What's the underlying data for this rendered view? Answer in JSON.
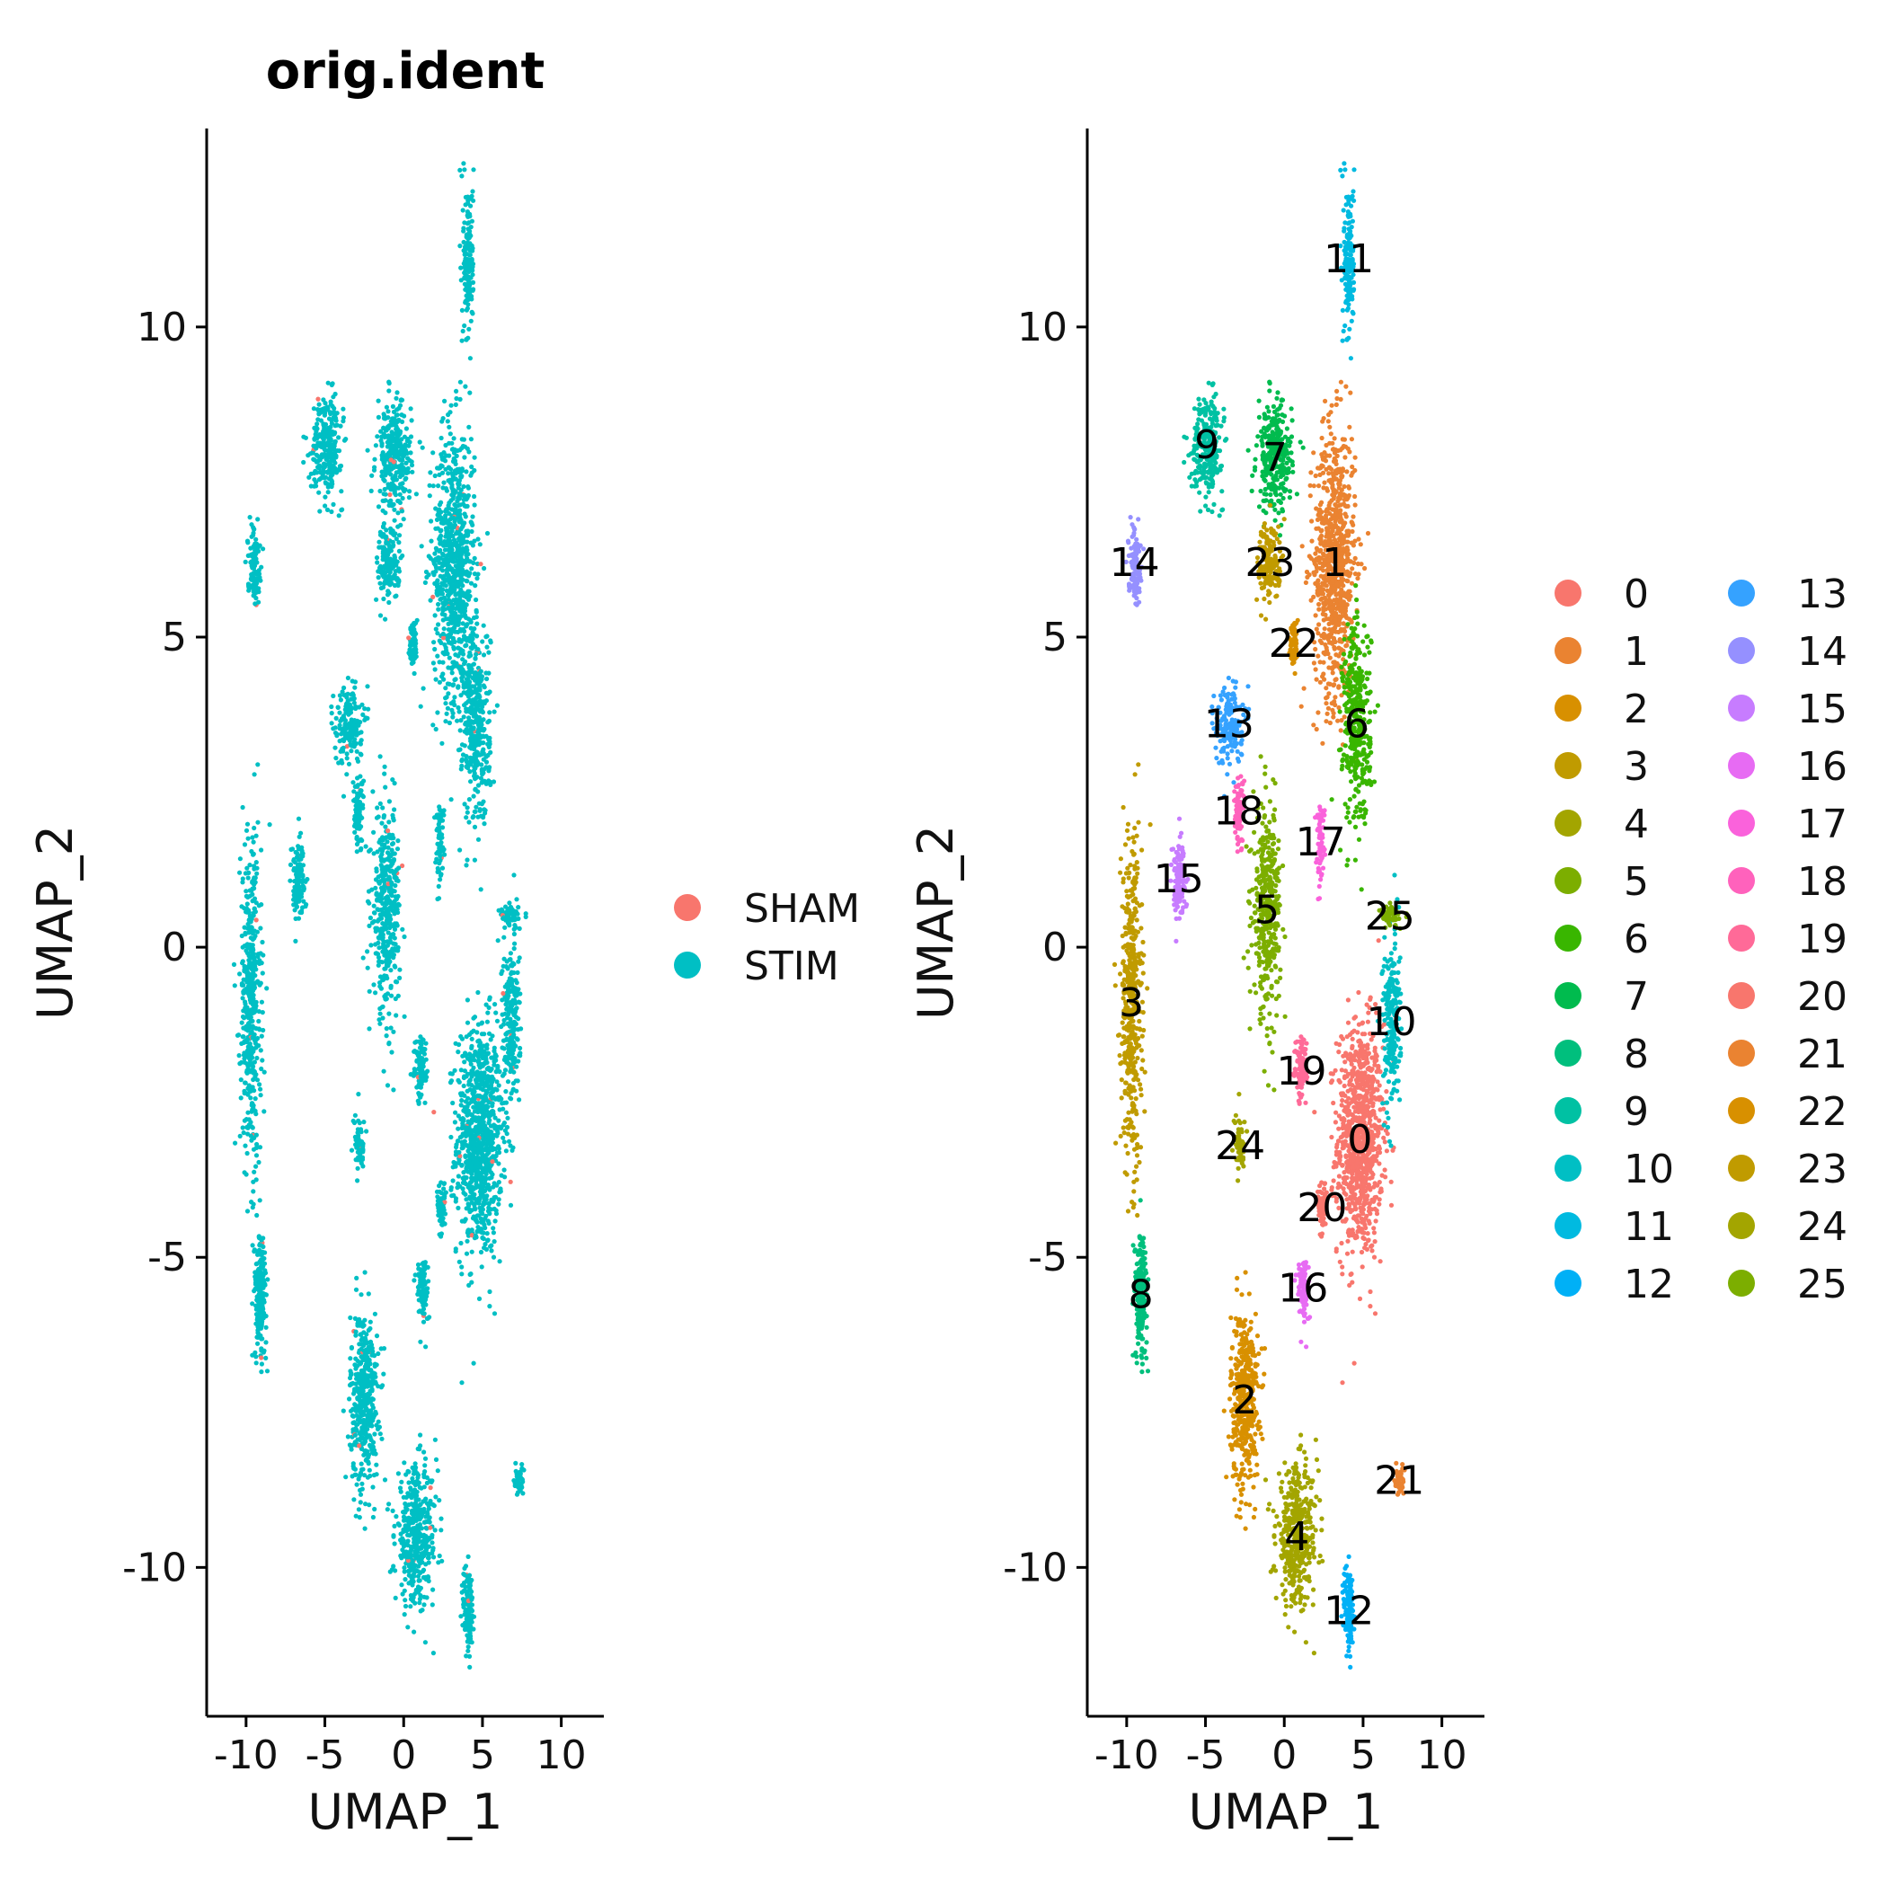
{
  "chart_data": [
    {
      "type": "scatter",
      "title": "orig.ident",
      "xlabel": "UMAP_1",
      "ylabel": "UMAP_2",
      "xlim": [
        -12.5,
        12.7
      ],
      "ylim": [
        -12.4,
        13.2
      ],
      "xticks": [
        -10,
        -5,
        0,
        5,
        10
      ],
      "yticks": [
        -10,
        -5,
        0,
        5,
        10
      ],
      "x_tick_labels": [
        "-10",
        "-5",
        "0",
        "5",
        "10"
      ],
      "y_tick_labels": [
        "-10",
        "-5",
        "0",
        "5",
        "10"
      ],
      "grid": false,
      "legend_position": "right",
      "legend": [
        {
          "name": "SHAM",
          "color": "#F8766D"
        },
        {
          "name": "STIM",
          "color": "#00BFC4"
        }
      ]
    },
    {
      "type": "scatter",
      "title": "",
      "xlabel": "UMAP_1",
      "ylabel": "UMAP_2",
      "xlim": [
        -12.5,
        12.7
      ],
      "ylim": [
        -12.4,
        13.2
      ],
      "xticks": [
        -10,
        -5,
        0,
        5,
        10
      ],
      "yticks": [
        -10,
        -5,
        0,
        5,
        10
      ],
      "x_tick_labels": [
        "-10",
        "-5",
        "0",
        "5",
        "10"
      ],
      "y_tick_labels": [
        "-10",
        "-5",
        "0",
        "5",
        "10"
      ],
      "grid": false,
      "legend_position": "right",
      "legend_columns": 2,
      "clusters": [
        {
          "name": "0",
          "color": "#F8766D",
          "x": 4.8,
          "y": -3.1
        },
        {
          "name": "1",
          "color": "#EA8331",
          "x": 3.2,
          "y": 6.2
        },
        {
          "name": "2",
          "color": "#D89000",
          "x": -2.5,
          "y": -7.3
        },
        {
          "name": "3",
          "color": "#C09B00",
          "x": -9.7,
          "y": -0.9
        },
        {
          "name": "4",
          "color": "#A3A500",
          "x": 0.8,
          "y": -9.5
        },
        {
          "name": "5",
          "color": "#7CAE00",
          "x": -1.1,
          "y": 0.6
        },
        {
          "name": "6",
          "color": "#39B600",
          "x": 4.6,
          "y": 3.6
        },
        {
          "name": "7",
          "color": "#00BB4E",
          "x": -0.6,
          "y": 7.9
        },
        {
          "name": "8",
          "color": "#00BF7D",
          "x": -9.1,
          "y": -5.6
        },
        {
          "name": "9",
          "color": "#00C1A3",
          "x": -4.9,
          "y": 8.1
        },
        {
          "name": "10",
          "color": "#00BFC4",
          "x": 6.8,
          "y": -1.2
        },
        {
          "name": "11",
          "color": "#00BAE0",
          "x": 4.1,
          "y": 11.1
        },
        {
          "name": "12",
          "color": "#00B0F6",
          "x": 4.1,
          "y": -10.7
        },
        {
          "name": "13",
          "color": "#35A2FF",
          "x": -3.5,
          "y": 3.6
        },
        {
          "name": "14",
          "color": "#9590FF",
          "x": -9.5,
          "y": 6.2
        },
        {
          "name": "15",
          "color": "#C77CFF",
          "x": -6.7,
          "y": 1.1
        },
        {
          "name": "16",
          "color": "#E76BF3",
          "x": 1.2,
          "y": -5.5
        },
        {
          "name": "17",
          "color": "#FA62DB",
          "x": 2.3,
          "y": 1.7
        },
        {
          "name": "18",
          "color": "#FF62BC",
          "x": -2.9,
          "y": 2.2
        },
        {
          "name": "19",
          "color": "#FF6A98",
          "x": 1.1,
          "y": -2.0
        },
        {
          "name": "20",
          "color": "#F8766D",
          "x": 2.4,
          "y": -4.2
        },
        {
          "name": "21",
          "color": "#EA8331",
          "x": 7.3,
          "y": -8.6
        },
        {
          "name": "22",
          "color": "#D89000",
          "x": 0.6,
          "y": 4.9
        },
        {
          "name": "23",
          "color": "#C09B00",
          "x": -0.9,
          "y": 6.2
        },
        {
          "name": "24",
          "color": "#A3A500",
          "x": -2.8,
          "y": -3.2
        },
        {
          "name": "25",
          "color": "#7CAE00",
          "x": 6.7,
          "y": 0.5
        }
      ],
      "legend_colors": [
        "#F8766D",
        "#EA8331",
        "#D89000",
        "#C09B00",
        "#A3A500",
        "#7CAE00",
        "#39B600",
        "#00BB4E",
        "#00BF7D",
        "#00C1A3",
        "#00BFC4",
        "#00BAE0",
        "#00B0F6",
        "#35A2FF",
        "#9590FF",
        "#C77CFF",
        "#E76BF3",
        "#FA62DB",
        "#FF62BC",
        "#FF6A98",
        "#F8766D",
        "#EA8331",
        "#D89000",
        "#C09B00",
        "#A3A500",
        "#7CAE00"
      ]
    }
  ]
}
